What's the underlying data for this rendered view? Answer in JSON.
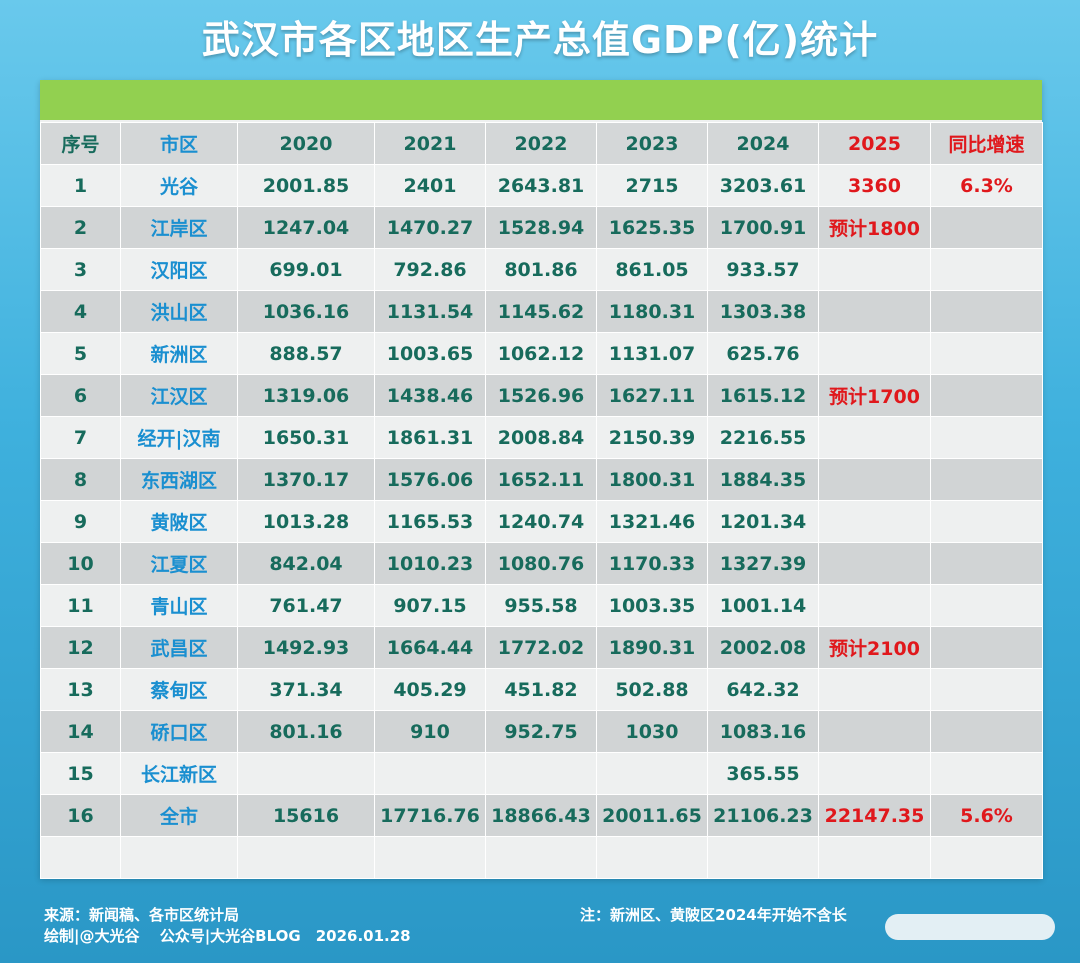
{
  "title": "武汉市各区地区生产总值GDP(亿)统计",
  "headers": [
    "序号",
    "市区",
    "2020",
    "2021",
    "2022",
    "2023",
    "2024",
    "2025",
    "同比增速"
  ],
  "rows": [
    {
      "no": "1",
      "district": "光谷",
      "y2020": "2001.85",
      "y2021": "2401",
      "y2022": "2643.81",
      "y2023": "2715",
      "y2024": "3203.61",
      "y2025": "3360",
      "growth": "6.3%"
    },
    {
      "no": "2",
      "district": "江岸区",
      "y2020": "1247.04",
      "y2021": "1470.27",
      "y2022": "1528.94",
      "y2023": "1625.35",
      "y2024": "1700.91",
      "y2025": "预计1800",
      "growth": ""
    },
    {
      "no": "3",
      "district": "汉阳区",
      "y2020": "699.01",
      "y2021": "792.86",
      "y2022": "801.86",
      "y2023": "861.05",
      "y2024": "933.57",
      "y2025": "",
      "growth": ""
    },
    {
      "no": "4",
      "district": "洪山区",
      "y2020": "1036.16",
      "y2021": "1131.54",
      "y2022": "1145.62",
      "y2023": "1180.31",
      "y2024": "1303.38",
      "y2025": "",
      "growth": ""
    },
    {
      "no": "5",
      "district": "新洲区",
      "y2020": "888.57",
      "y2021": "1003.65",
      "y2022": "1062.12",
      "y2023": "1131.07",
      "y2024": "625.76",
      "y2025": "",
      "growth": ""
    },
    {
      "no": "6",
      "district": "江汉区",
      "y2020": "1319.06",
      "y2021": "1438.46",
      "y2022": "1526.96",
      "y2023": "1627.11",
      "y2024": "1615.12",
      "y2025": "预计1700",
      "growth": ""
    },
    {
      "no": "7",
      "district": "经开|汉南",
      "y2020": "1650.31",
      "y2021": "1861.31",
      "y2022": "2008.84",
      "y2023": "2150.39",
      "y2024": "2216.55",
      "y2025": "",
      "growth": ""
    },
    {
      "no": "8",
      "district": "东西湖区",
      "y2020": "1370.17",
      "y2021": "1576.06",
      "y2022": "1652.11",
      "y2023": "1800.31",
      "y2024": "1884.35",
      "y2025": "",
      "growth": ""
    },
    {
      "no": "9",
      "district": "黄陂区",
      "y2020": "1013.28",
      "y2021": "1165.53",
      "y2022": "1240.74",
      "y2023": "1321.46",
      "y2024": "1201.34",
      "y2025": "",
      "growth": ""
    },
    {
      "no": "10",
      "district": "江夏区",
      "y2020": "842.04",
      "y2021": "1010.23",
      "y2022": "1080.76",
      "y2023": "1170.33",
      "y2024": "1327.39",
      "y2025": "",
      "growth": ""
    },
    {
      "no": "11",
      "district": "青山区",
      "y2020": "761.47",
      "y2021": "907.15",
      "y2022": "955.58",
      "y2023": "1003.35",
      "y2024": "1001.14",
      "y2025": "",
      "growth": ""
    },
    {
      "no": "12",
      "district": "武昌区",
      "y2020": "1492.93",
      "y2021": "1664.44",
      "y2022": "1772.02",
      "y2023": "1890.31",
      "y2024": "2002.08",
      "y2025": "预计2100",
      "growth": ""
    },
    {
      "no": "13",
      "district": "蔡甸区",
      "y2020": "371.34",
      "y2021": "405.29",
      "y2022": "451.82",
      "y2023": "502.88",
      "y2024": "642.32",
      "y2025": "",
      "growth": ""
    },
    {
      "no": "14",
      "district": "硚口区",
      "y2020": "801.16",
      "y2021": "910",
      "y2022": "952.75",
      "y2023": "1030",
      "y2024": "1083.16",
      "y2025": "",
      "growth": ""
    },
    {
      "no": "15",
      "district": "长江新区",
      "y2020": "",
      "y2021": "",
      "y2022": "",
      "y2023": "",
      "y2024": "365.55",
      "y2025": "",
      "growth": ""
    },
    {
      "no": "16",
      "district": "全市",
      "y2020": "15616",
      "y2021": "17716.76",
      "y2022": "18866.43",
      "y2023": "20011.65",
      "y2024": "21106.23",
      "y2025": "22147.35",
      "growth": "5.6%"
    }
  ],
  "footer": {
    "source": "来源：新闻稿、各市区统计局",
    "credit": "绘制|@大光谷　 公众号|大光谷BLOG　2026.01.28",
    "note": "注：新洲区、黄陂区2024年开始不含长"
  },
  "colors": {
    "background": "#3eb0dd",
    "band": "#92d050",
    "header_text": "#176b5c",
    "district_text": "#1a8fd0",
    "highlight_red": "#e0181c"
  }
}
